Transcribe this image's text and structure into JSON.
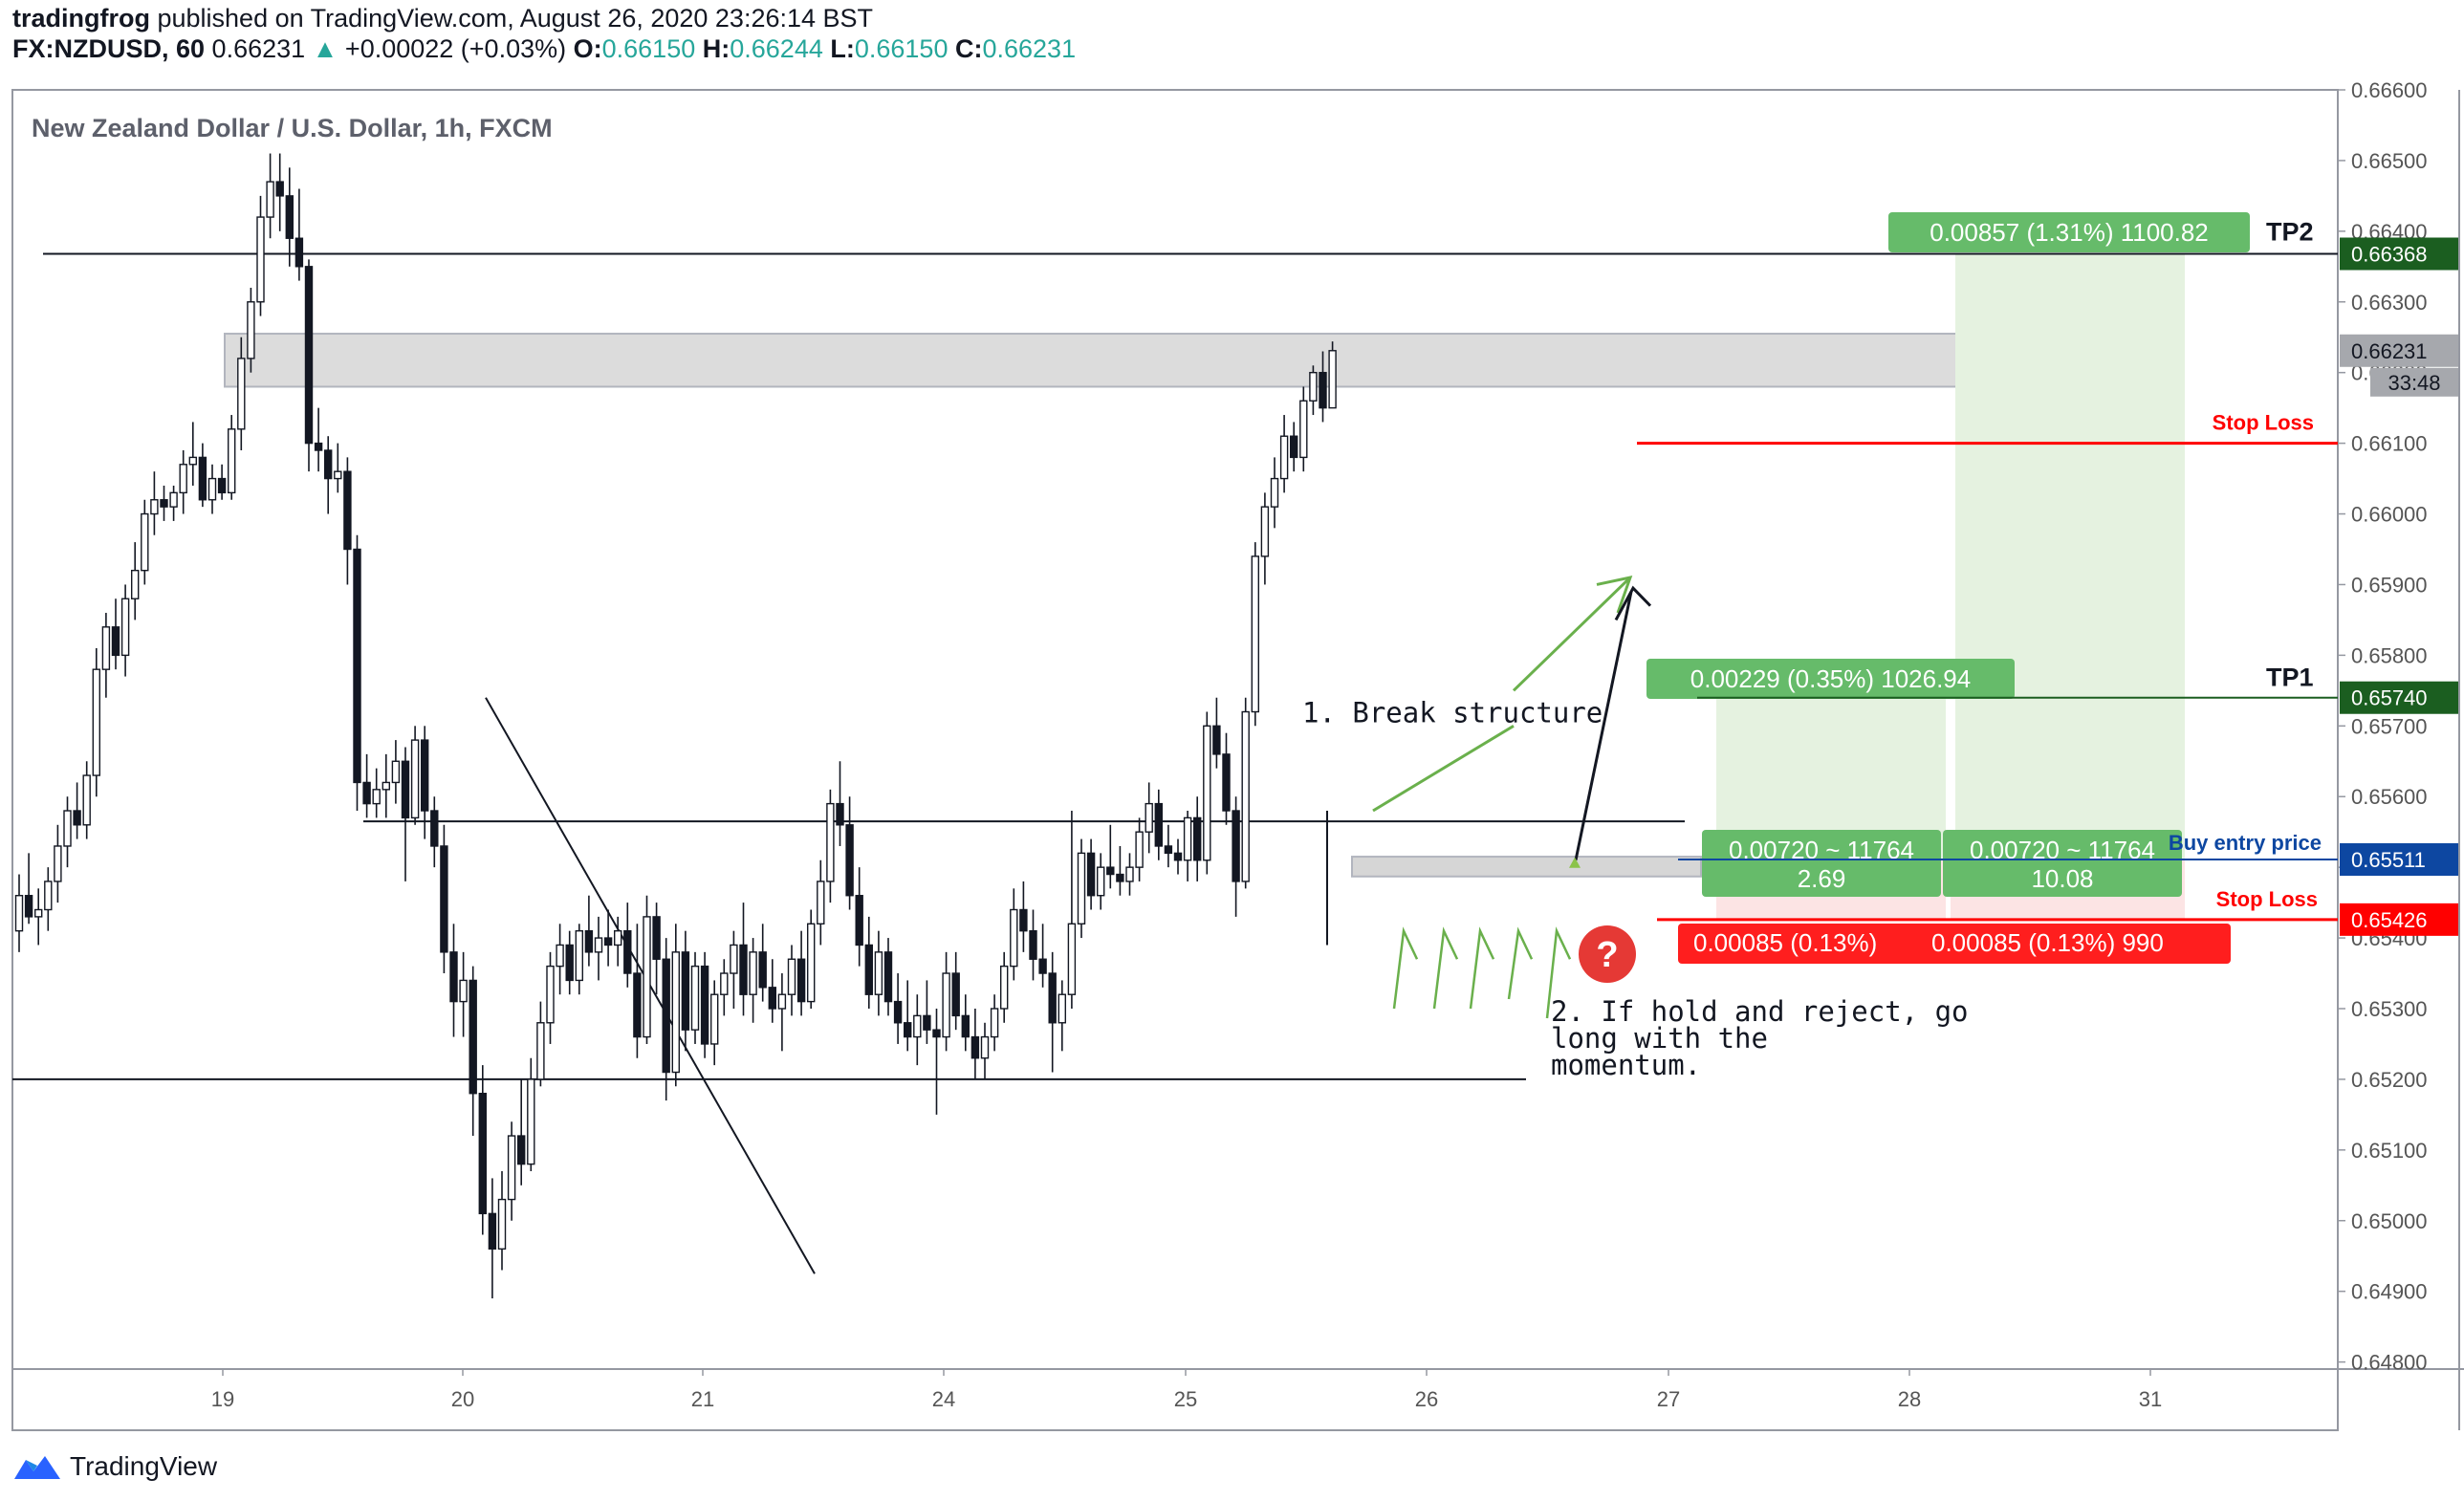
{
  "header": {
    "author": "tradingfrog",
    "published_text": "published on TradingView.com, August 26, 2020 23:26:14 BST",
    "symbol": "FX:NZDUSD, 60",
    "last": "0.66231",
    "change_arrow": "▲",
    "change": "+0.00022 (+0.03%)",
    "o_label": "O:",
    "o_value": "0.66150",
    "h_label": "H:",
    "h_value": "0.66244",
    "l_label": "L:",
    "l_value": "0.66150",
    "c_label": "C:",
    "c_value": "0.66231"
  },
  "footer": {
    "brand": "TradingView",
    "logo_icon": "tradingview-logo-icon"
  },
  "colors": {
    "up": "#26a69a",
    "down": "#131722",
    "green_box": "#4caf50",
    "green_light": "#e5f2e0",
    "red": "#ff0000",
    "red_light": "#fce4e4",
    "blue": "#0d47a1",
    "gray_zone": "#d6d6d6"
  },
  "chart_data": {
    "type": "candlestick",
    "title": "New Zealand Dollar / U.S. Dollar, 1h, FXCM",
    "timeframe": "1h",
    "x_ticks": [
      "19",
      "20",
      "21",
      "24",
      "25",
      "26",
      "27",
      "28",
      "31"
    ],
    "y_ticks": [
      "0.66600",
      "0.66500",
      "0.66400",
      "0.66300",
      "0.66200",
      "0.66100",
      "0.66000",
      "0.65900",
      "0.65800",
      "0.65700",
      "0.65600",
      "0.65500",
      "0.65400",
      "0.65300",
      "0.65200",
      "0.65100",
      "0.65000",
      "0.64900",
      "0.64800"
    ],
    "ylim": [
      0.6479,
      0.666
    ],
    "last_price": {
      "value": "0.66231",
      "countdown": "33:48"
    },
    "price_labels": [
      {
        "text": "0.66368",
        "kind": "TP2"
      },
      {
        "text": "0.65740",
        "kind": "TP1"
      },
      {
        "text": "0.65511",
        "kind": "entry"
      },
      {
        "text": "0.65426",
        "kind": "stop"
      }
    ],
    "levels": [
      {
        "label": "TP2",
        "price": 0.66368
      },
      {
        "label": "Stop Loss",
        "price": 0.661
      },
      {
        "label": "TP1",
        "price": 0.6574
      },
      {
        "label": "Buy entry price",
        "price": 0.65511
      },
      {
        "label": "Stop Loss",
        "price": 0.65426
      }
    ],
    "horizontal_lines": [
      0.66368,
      0.65565,
      0.652
    ],
    "zones": [
      {
        "from": 0.66255,
        "to": 0.6618
      },
      {
        "from": 0.65515,
        "to": 0.65487
      }
    ],
    "positions": [
      {
        "target_text": "0.00857 (1.31%) 1100.82",
        "target_price": 0.66368
      },
      {
        "target_text": "0.00229 (0.35%) 1026.94",
        "target_price": 0.6574
      },
      {
        "mid_text_1": "0.00720 ~ 11764",
        "mid_ratio_1": "2.69",
        "mid_text_2": "0.00720 ~ 11764",
        "mid_ratio_2": "10.08"
      },
      {
        "stop_text_1": "0.00085 (0.13%)",
        "stop_text_2": "0.00085 (0.13%) 990"
      }
    ],
    "annotations": {
      "break": "1. Break structure",
      "hold_1": "2. If hold and reject, go",
      "hold_2": "long with the",
      "hold_3": "momentum.",
      "question_icon": "question-icon"
    },
    "candles": [
      [
        0.6541,
        0.6549,
        0.6538,
        0.6546
      ],
      [
        0.6546,
        0.6552,
        0.6542,
        0.6543
      ],
      [
        0.6543,
        0.6547,
        0.6539,
        0.6544
      ],
      [
        0.6544,
        0.655,
        0.6541,
        0.6548
      ],
      [
        0.6548,
        0.6556,
        0.6545,
        0.6553
      ],
      [
        0.6553,
        0.656,
        0.655,
        0.6558
      ],
      [
        0.6558,
        0.6562,
        0.6554,
        0.6556
      ],
      [
        0.6556,
        0.6565,
        0.6554,
        0.6563
      ],
      [
        0.6563,
        0.6581,
        0.656,
        0.6578
      ],
      [
        0.6578,
        0.6586,
        0.6574,
        0.6584
      ],
      [
        0.6584,
        0.6588,
        0.6578,
        0.658
      ],
      [
        0.658,
        0.659,
        0.6577,
        0.6588
      ],
      [
        0.6588,
        0.6596,
        0.6585,
        0.6592
      ],
      [
        0.6592,
        0.6602,
        0.659,
        0.66
      ],
      [
        0.66,
        0.6606,
        0.6597,
        0.6602
      ],
      [
        0.6602,
        0.6604,
        0.6599,
        0.6601
      ],
      [
        0.6601,
        0.6604,
        0.6599,
        0.6603
      ],
      [
        0.6603,
        0.6609,
        0.66,
        0.6607
      ],
      [
        0.6607,
        0.6613,
        0.6604,
        0.6608
      ],
      [
        0.6608,
        0.661,
        0.6601,
        0.6602
      ],
      [
        0.6602,
        0.6607,
        0.66,
        0.6605
      ],
      [
        0.6605,
        0.6607,
        0.6602,
        0.6603
      ],
      [
        0.6603,
        0.6614,
        0.6602,
        0.6612
      ],
      [
        0.6612,
        0.6625,
        0.6609,
        0.6622
      ],
      [
        0.6622,
        0.6632,
        0.662,
        0.663
      ],
      [
        0.663,
        0.6645,
        0.6628,
        0.6642
      ],
      [
        0.6642,
        0.6651,
        0.6639,
        0.6647
      ],
      [
        0.6647,
        0.6651,
        0.664,
        0.6645
      ],
      [
        0.6645,
        0.6649,
        0.6635,
        0.6639
      ],
      [
        0.6639,
        0.6646,
        0.6633,
        0.6635
      ],
      [
        0.6635,
        0.6636,
        0.6606,
        0.661
      ],
      [
        0.661,
        0.6615,
        0.6606,
        0.6609
      ],
      [
        0.6609,
        0.6611,
        0.66,
        0.6605
      ],
      [
        0.6605,
        0.661,
        0.6603,
        0.6606
      ],
      [
        0.6606,
        0.6608,
        0.659,
        0.6595
      ],
      [
        0.6595,
        0.6597,
        0.6558,
        0.6562
      ],
      [
        0.6562,
        0.6566,
        0.6557,
        0.6559
      ],
      [
        0.6559,
        0.6564,
        0.6557,
        0.6561
      ],
      [
        0.6561,
        0.6566,
        0.6557,
        0.6562
      ],
      [
        0.6562,
        0.6568,
        0.6559,
        0.6565
      ],
      [
        0.6565,
        0.6567,
        0.6548,
        0.6557
      ],
      [
        0.6557,
        0.657,
        0.6556,
        0.6568
      ],
      [
        0.6568,
        0.657,
        0.6554,
        0.6558
      ],
      [
        0.6558,
        0.656,
        0.655,
        0.6553
      ],
      [
        0.6553,
        0.6556,
        0.6535,
        0.6538
      ],
      [
        0.6538,
        0.6542,
        0.6526,
        0.6531
      ],
      [
        0.6531,
        0.6538,
        0.6526,
        0.6534
      ],
      [
        0.6534,
        0.6536,
        0.6512,
        0.6518
      ],
      [
        0.6518,
        0.6522,
        0.6498,
        0.6501
      ],
      [
        0.6501,
        0.6506,
        0.6489,
        0.6496
      ],
      [
        0.6496,
        0.6507,
        0.6493,
        0.6503
      ],
      [
        0.6503,
        0.6514,
        0.65,
        0.6512
      ],
      [
        0.6512,
        0.652,
        0.6505,
        0.6508
      ],
      [
        0.6508,
        0.6523,
        0.6507,
        0.652
      ],
      [
        0.652,
        0.6531,
        0.6519,
        0.6528
      ],
      [
        0.6528,
        0.6538,
        0.6525,
        0.6536
      ],
      [
        0.6536,
        0.6542,
        0.6532,
        0.6539
      ],
      [
        0.6539,
        0.6541,
        0.6532,
        0.6534
      ],
      [
        0.6534,
        0.6542,
        0.6532,
        0.6541
      ],
      [
        0.6541,
        0.6546,
        0.6536,
        0.6538
      ],
      [
        0.6538,
        0.6543,
        0.6534,
        0.654
      ],
      [
        0.654,
        0.6544,
        0.6536,
        0.6539
      ],
      [
        0.6539,
        0.6543,
        0.6536,
        0.6541
      ],
      [
        0.6541,
        0.6545,
        0.6533,
        0.6535
      ],
      [
        0.6535,
        0.6542,
        0.6523,
        0.6526
      ],
      [
        0.6526,
        0.6546,
        0.6525,
        0.6543
      ],
      [
        0.6543,
        0.6545,
        0.6532,
        0.6537
      ],
      [
        0.6537,
        0.654,
        0.6517,
        0.6521
      ],
      [
        0.6521,
        0.6542,
        0.6519,
        0.6538
      ],
      [
        0.6538,
        0.6541,
        0.6524,
        0.6527
      ],
      [
        0.6527,
        0.6538,
        0.6525,
        0.6536
      ],
      [
        0.6536,
        0.6538,
        0.6523,
        0.6525
      ],
      [
        0.6525,
        0.6534,
        0.6522,
        0.6532
      ],
      [
        0.6532,
        0.6537,
        0.6529,
        0.6535
      ],
      [
        0.6535,
        0.6541,
        0.653,
        0.6539
      ],
      [
        0.6539,
        0.6545,
        0.6529,
        0.6532
      ],
      [
        0.6532,
        0.654,
        0.6528,
        0.6538
      ],
      [
        0.6538,
        0.6542,
        0.6531,
        0.6533
      ],
      [
        0.6533,
        0.6537,
        0.6528,
        0.653
      ],
      [
        0.653,
        0.6535,
        0.6524,
        0.6532
      ],
      [
        0.6532,
        0.6539,
        0.6529,
        0.6537
      ],
      [
        0.6537,
        0.6541,
        0.6529,
        0.6531
      ],
      [
        0.6531,
        0.6544,
        0.653,
        0.6542
      ],
      [
        0.6542,
        0.6551,
        0.6539,
        0.6548
      ],
      [
        0.6548,
        0.6561,
        0.6545,
        0.6559
      ],
      [
        0.6559,
        0.6565,
        0.6553,
        0.6556
      ],
      [
        0.6556,
        0.656,
        0.6544,
        0.6546
      ],
      [
        0.6546,
        0.655,
        0.6536,
        0.6539
      ],
      [
        0.6539,
        0.6543,
        0.653,
        0.6532
      ],
      [
        0.6532,
        0.6541,
        0.6529,
        0.6538
      ],
      [
        0.6538,
        0.654,
        0.6529,
        0.6531
      ],
      [
        0.6531,
        0.6535,
        0.6525,
        0.6528
      ],
      [
        0.6528,
        0.6534,
        0.6524,
        0.6526
      ],
      [
        0.6526,
        0.6532,
        0.6522,
        0.6529
      ],
      [
        0.6529,
        0.6534,
        0.6525,
        0.6527
      ],
      [
        0.6527,
        0.653,
        0.6515,
        0.6526
      ],
      [
        0.6526,
        0.6538,
        0.6524,
        0.6535
      ],
      [
        0.6535,
        0.6538,
        0.6527,
        0.6529
      ],
      [
        0.6529,
        0.6532,
        0.6524,
        0.6526
      ],
      [
        0.6526,
        0.653,
        0.652,
        0.6523
      ],
      [
        0.6523,
        0.6528,
        0.652,
        0.6526
      ],
      [
        0.6526,
        0.6532,
        0.6524,
        0.653
      ],
      [
        0.653,
        0.6538,
        0.6528,
        0.6536
      ],
      [
        0.6536,
        0.6547,
        0.6534,
        0.6544
      ],
      [
        0.6544,
        0.6548,
        0.6538,
        0.6541
      ],
      [
        0.6541,
        0.6544,
        0.6534,
        0.6537
      ],
      [
        0.6537,
        0.6542,
        0.6533,
        0.6535
      ],
      [
        0.6535,
        0.6538,
        0.6521,
        0.6528
      ],
      [
        0.6528,
        0.6534,
        0.6524,
        0.6532
      ],
      [
        0.6532,
        0.6558,
        0.653,
        0.6542
      ],
      [
        0.6542,
        0.6554,
        0.654,
        0.6552
      ],
      [
        0.6552,
        0.6554,
        0.6544,
        0.6546
      ],
      [
        0.6546,
        0.6552,
        0.6544,
        0.655
      ],
      [
        0.655,
        0.6556,
        0.6547,
        0.6549
      ],
      [
        0.6549,
        0.6553,
        0.6546,
        0.6548
      ],
      [
        0.6548,
        0.6552,
        0.6546,
        0.655
      ],
      [
        0.655,
        0.6557,
        0.6548,
        0.6555
      ],
      [
        0.6555,
        0.6562,
        0.6552,
        0.6559
      ],
      [
        0.6559,
        0.6561,
        0.6551,
        0.6553
      ],
      [
        0.6553,
        0.6556,
        0.655,
        0.6552
      ],
      [
        0.6552,
        0.6554,
        0.6549,
        0.6551
      ],
      [
        0.6551,
        0.6558,
        0.6548,
        0.6557
      ],
      [
        0.6557,
        0.656,
        0.6548,
        0.6551
      ],
      [
        0.6551,
        0.6572,
        0.6549,
        0.657
      ],
      [
        0.657,
        0.6574,
        0.6564,
        0.6566
      ],
      [
        0.6566,
        0.6569,
        0.6556,
        0.6558
      ],
      [
        0.6558,
        0.656,
        0.6543,
        0.6548
      ],
      [
        0.6548,
        0.6574,
        0.6547,
        0.6572
      ],
      [
        0.6572,
        0.6596,
        0.657,
        0.6594
      ],
      [
        0.6594,
        0.6603,
        0.659,
        0.6601
      ],
      [
        0.6601,
        0.6608,
        0.6598,
        0.6605
      ],
      [
        0.6605,
        0.6614,
        0.6603,
        0.6611
      ],
      [
        0.6611,
        0.6613,
        0.6606,
        0.6608
      ],
      [
        0.6608,
        0.6618,
        0.6606,
        0.6616
      ],
      [
        0.6616,
        0.6621,
        0.6614,
        0.662
      ],
      [
        0.662,
        0.6623,
        0.6613,
        0.6615
      ],
      [
        0.6615,
        0.66244,
        0.6615,
        0.66231
      ]
    ]
  }
}
